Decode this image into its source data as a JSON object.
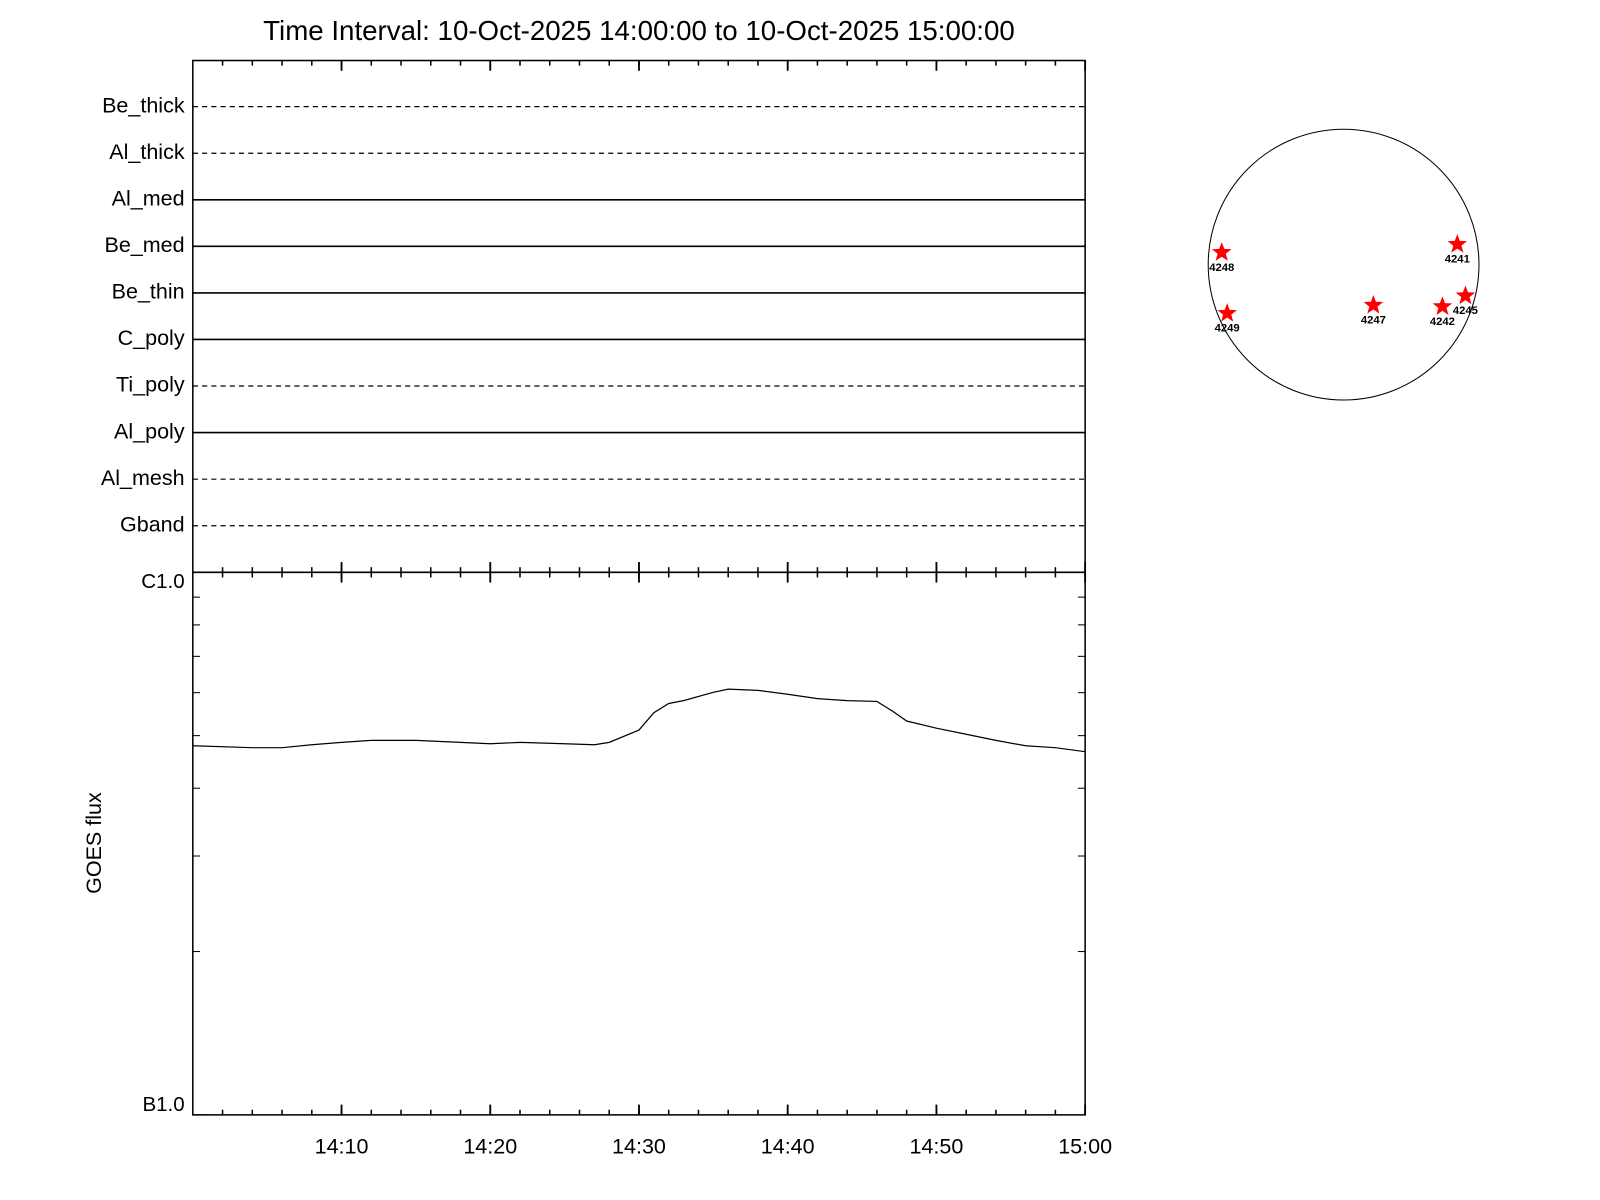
{
  "chart_data": [
    {
      "type": "timeline",
      "title": "Time Interval: 10-Oct-2025 14:00:00 to 10-Oct-2025 15:00:00",
      "filters": [
        {
          "name": "Be_thick",
          "style": "dashed"
        },
        {
          "name": "Al_thick",
          "style": "dashed"
        },
        {
          "name": "Al_med",
          "style": "solid"
        },
        {
          "name": "Be_med",
          "style": "solid"
        },
        {
          "name": "Be_thin",
          "style": "solid"
        },
        {
          "name": "C_poly",
          "style": "solid"
        },
        {
          "name": "Ti_poly",
          "style": "dashed"
        },
        {
          "name": "Al_poly",
          "style": "solid"
        },
        {
          "name": "Al_mesh",
          "style": "dashed"
        },
        {
          "name": "Gband",
          "style": "dashed"
        }
      ]
    },
    {
      "type": "line",
      "y_label": "GOES flux",
      "x": [
        "14:00",
        "14:04",
        "14:06",
        "14:08",
        "14:10",
        "14:12",
        "14:15",
        "14:18",
        "14:20",
        "14:22",
        "14:25",
        "14:27",
        "14:28",
        "14:30",
        "14:31",
        "14:32",
        "14:33",
        "14:35",
        "14:36",
        "14:38",
        "14:40",
        "14:42",
        "14:44",
        "14:46",
        "14:47",
        "14:48",
        "14:50",
        "14:52",
        "14:54",
        "14:56",
        "14:58",
        "15:00"
      ],
      "values": [
        4.79e-07,
        4.75e-07,
        4.75e-07,
        4.81e-07,
        4.86e-07,
        4.9e-07,
        4.9e-07,
        4.86e-07,
        4.83e-07,
        4.86e-07,
        4.83e-07,
        4.81e-07,
        4.86e-07,
        5.12e-07,
        5.51e-07,
        5.73e-07,
        5.8e-07,
        6.01e-07,
        6.09e-07,
        6.06e-07,
        5.96e-07,
        5.85e-07,
        5.8e-07,
        5.78e-07,
        5.56e-07,
        5.32e-07,
        5.16e-07,
        5.03e-07,
        4.9e-07,
        4.79e-07,
        4.75e-07,
        4.67e-07
      ],
      "color": "#000000",
      "xlim": [
        "14:00",
        "15:00"
      ],
      "xticks": [
        "14:10",
        "14:20",
        "14:30",
        "14:40",
        "14:50",
        "15:00"
      ],
      "ylim": [
        1e-07,
        1e-06
      ],
      "yticks": [
        {
          "value": 1e-07,
          "label": "B1.0"
        },
        {
          "value": 1e-06,
          "label": "C1.0"
        }
      ],
      "log_y": true
    },
    {
      "type": "disk",
      "color": "#ff0000",
      "regions": [
        {
          "name": "4241",
          "x": 0.84,
          "y": 0.15
        },
        {
          "name": "4248",
          "x": -0.9,
          "y": 0.09
        },
        {
          "name": "4249",
          "x": -0.86,
          "y": -0.36
        },
        {
          "name": "4247",
          "x": 0.22,
          "y": -0.3
        },
        {
          "name": "4242",
          "x": 0.73,
          "y": -0.31
        },
        {
          "name": "4245",
          "x": 0.9,
          "y": -0.23
        }
      ]
    }
  ]
}
